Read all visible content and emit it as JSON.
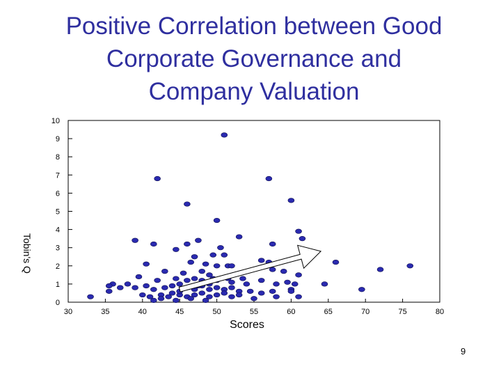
{
  "slide": {
    "title_lines": [
      "Positive Correlation between Good",
      "Corporate Governance and",
      "Company Valuation"
    ],
    "page_number": "9"
  },
  "colors": {
    "title": "#2f2f9f",
    "point": "#2a2ab0",
    "axis": "#000000"
  },
  "chart_data": {
    "type": "scatter",
    "xlabel": "Scores",
    "ylabel": "Tobin's Q",
    "xlim": [
      30,
      80
    ],
    "ylim": [
      0,
      10
    ],
    "xticks": [
      "30",
      "35",
      "40",
      "45",
      "50",
      "55",
      "60",
      "65",
      "70",
      "75",
      "80"
    ],
    "yticks": [
      "0",
      "1",
      "2",
      "3",
      "4",
      "5",
      "6",
      "7",
      "8",
      "9",
      "10"
    ],
    "grid": false,
    "annotation": "trend arrow",
    "arrow": {
      "from": [
        45,
        0.7
      ],
      "to": [
        64,
        2.8
      ]
    },
    "points": [
      [
        51,
        9.2
      ],
      [
        42,
        6.8
      ],
      [
        57,
        6.8
      ],
      [
        46,
        5.4
      ],
      [
        60,
        5.6
      ],
      [
        50,
        4.5
      ],
      [
        61,
        3.9
      ],
      [
        61.5,
        3.5
      ],
      [
        39,
        3.4
      ],
      [
        41.5,
        3.2
      ],
      [
        47.5,
        3.4
      ],
      [
        53,
        3.6
      ],
      [
        57.5,
        3.2
      ],
      [
        44.5,
        2.9
      ],
      [
        46,
        3.2
      ],
      [
        50.5,
        3.0
      ],
      [
        51,
        2.6
      ],
      [
        49.5,
        2.6
      ],
      [
        46.5,
        2.2
      ],
      [
        47,
        2.5
      ],
      [
        56,
        2.3
      ],
      [
        57,
        2.2
      ],
      [
        66,
        2.2
      ],
      [
        40.5,
        2.1
      ],
      [
        48.5,
        2.1
      ],
      [
        50,
        2.0
      ],
      [
        51.5,
        2.0
      ],
      [
        52,
        2.0
      ],
      [
        72,
        1.8
      ],
      [
        76,
        2.0
      ],
      [
        43,
        1.7
      ],
      [
        45.5,
        1.6
      ],
      [
        48,
        1.7
      ],
      [
        49,
        1.5
      ],
      [
        57.5,
        1.8
      ],
      [
        59,
        1.7
      ],
      [
        61,
        1.5
      ],
      [
        64.5,
        1.0
      ],
      [
        69.5,
        0.7
      ],
      [
        39.5,
        1.4
      ],
      [
        42,
        1.2
      ],
      [
        44.5,
        1.3
      ],
      [
        47,
        1.3
      ],
      [
        49.5,
        1.3
      ],
      [
        52,
        1.1
      ],
      [
        53.5,
        1.3
      ],
      [
        54,
        1.0
      ],
      [
        56,
        1.2
      ],
      [
        58,
        1.0
      ],
      [
        59.5,
        1.1
      ],
      [
        60.5,
        1.0
      ],
      [
        38,
        1.0
      ],
      [
        39,
        0.8
      ],
      [
        40.5,
        0.9
      ],
      [
        41.5,
        0.7
      ],
      [
        43,
        0.8
      ],
      [
        44,
        0.9
      ],
      [
        45,
        1.0
      ],
      [
        46,
        0.8
      ],
      [
        47,
        0.7
      ],
      [
        48,
        0.9
      ],
      [
        49,
        1.0
      ],
      [
        50,
        0.8
      ],
      [
        51,
        0.7
      ],
      [
        52,
        0.8
      ],
      [
        53,
        0.6
      ],
      [
        54.5,
        0.6
      ],
      [
        56,
        0.5
      ],
      [
        57.5,
        0.6
      ],
      [
        60,
        0.7
      ],
      [
        36,
        1.0
      ],
      [
        35.5,
        0.9
      ],
      [
        35.5,
        0.6
      ],
      [
        37,
        0.8
      ],
      [
        33,
        0.3
      ],
      [
        40,
        0.4
      ],
      [
        41,
        0.3
      ],
      [
        42.5,
        0.4
      ],
      [
        43.5,
        0.3
      ],
      [
        44,
        0.5
      ],
      [
        45,
        0.4
      ],
      [
        46,
        0.3
      ],
      [
        47,
        0.4
      ],
      [
        48,
        0.5
      ],
      [
        49,
        0.3
      ],
      [
        50,
        0.4
      ],
      [
        51,
        0.5
      ],
      [
        52,
        0.3
      ],
      [
        53,
        0.4
      ],
      [
        55,
        0.2
      ],
      [
        58,
        0.3
      ],
      [
        60,
        0.6
      ],
      [
        61,
        0.3
      ],
      [
        41.5,
        0.1
      ],
      [
        42.5,
        0.2
      ],
      [
        44.5,
        0.1
      ],
      [
        46.5,
        0.2
      ],
      [
        48.5,
        0.1
      ],
      [
        45,
        0.6
      ],
      [
        46,
        1.2
      ],
      [
        48,
        1.2
      ],
      [
        50,
        1.2
      ],
      [
        51.5,
        1.3
      ],
      [
        49,
        0.7
      ],
      [
        47.5,
        0.9
      ]
    ]
  }
}
